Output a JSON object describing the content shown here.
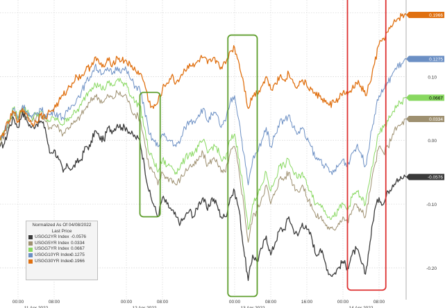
{
  "chart_data": {
    "type": "line",
    "title": "",
    "xlabel": "",
    "ylabel": "",
    "ylim": [
      -0.25,
      0.22
    ],
    "y_ticks": [
      0.1,
      0.0,
      -0.1,
      -0.2
    ],
    "y_tick_labels": [
      "0.10",
      "0.00",
      "-0.10",
      "-0.20"
    ],
    "x_ticks": [
      {
        "x": 4,
        "label": "00:00"
      },
      {
        "x": 12,
        "label": "08:00"
      },
      {
        "x": 28,
        "label": "00:00"
      },
      {
        "x": 36,
        "label": "08:00"
      },
      {
        "x": 52,
        "label": "00:00"
      },
      {
        "x": 60,
        "label": "08:00"
      },
      {
        "x": 68,
        "label": "16:00"
      },
      {
        "x": 76,
        "label": "00:00"
      },
      {
        "x": 84,
        "label": "08:00"
      }
    ],
    "date_labels": [
      {
        "x": 8,
        "label": "11 Apr 2022"
      },
      {
        "x": 32,
        "label": "12 Apr 2022"
      },
      {
        "x": 56,
        "label": "13 Apr 2022"
      },
      {
        "x": 80,
        "label": "14 Apr 2022"
      }
    ],
    "xlim": [
      0,
      90
    ],
    "grid": true,
    "legend_position": "bottom-left",
    "legend": {
      "line1": "Normalized As Of 04/08/2022",
      "line2": "Last Price"
    },
    "highlight_boxes": [
      {
        "x0": 31.0,
        "x1": 35.5,
        "y0": 0.075,
        "y1": -0.12,
        "color": "#5e9e2c"
      },
      {
        "x0": 50.5,
        "x1": 57.0,
        "y0": 0.165,
        "y1": -0.245,
        "color": "#5e9e2c"
      },
      {
        "x0": 77.0,
        "x1": 85.5,
        "y0": 0.228,
        "y1": -0.235,
        "color": "#dd3030"
      }
    ],
    "series": [
      {
        "name": "USGG2YR Index",
        "label": "USGG2YR Index",
        "value_label": "-0.0576",
        "last": -0.0576,
        "color": "#3a3a3a",
        "values": [
          -0.01,
          -0.005,
          0.02,
          0.035,
          0.02,
          0.045,
          0.03,
          0.02,
          0.025,
          0.03,
          0.02,
          -0.02,
          -0.015,
          -0.03,
          -0.05,
          -0.04,
          -0.045,
          -0.035,
          -0.03,
          -0.01,
          -0.01,
          0.015,
          0.005,
          0.0,
          0.02,
          0.015,
          0.025,
          0.02,
          0.02,
          0.01,
          0.005,
          0.0,
          -0.04,
          -0.08,
          -0.1,
          -0.12,
          -0.09,
          -0.1,
          -0.11,
          -0.12,
          -0.13,
          -0.12,
          -0.11,
          -0.12,
          -0.1,
          -0.09,
          -0.11,
          -0.09,
          -0.1,
          -0.12,
          -0.12,
          -0.09,
          -0.08,
          -0.11,
          -0.17,
          -0.22,
          -0.18,
          -0.19,
          -0.17,
          -0.15,
          -0.18,
          -0.16,
          -0.14,
          -0.14,
          -0.12,
          -0.14,
          -0.15,
          -0.13,
          -0.14,
          -0.15,
          -0.18,
          -0.17,
          -0.19,
          -0.21,
          -0.21,
          -0.2,
          -0.19,
          -0.2,
          -0.18,
          -0.17,
          -0.19,
          -0.21,
          -0.16,
          -0.11,
          -0.09,
          -0.1,
          -0.08,
          -0.07,
          -0.06,
          -0.06,
          -0.0576
        ]
      },
      {
        "name": "USGG5YR Index",
        "label": "USGG5YR Index",
        "value_label": "0.0334",
        "last": 0.0334,
        "color": "#9e9070",
        "values": [
          -0.005,
          0.01,
          0.025,
          0.045,
          0.03,
          0.05,
          0.035,
          0.03,
          0.035,
          0.04,
          0.03,
          0.02,
          0.025,
          0.02,
          0.01,
          0.02,
          0.025,
          0.03,
          0.04,
          0.05,
          0.06,
          0.07,
          0.065,
          0.06,
          0.07,
          0.065,
          0.075,
          0.07,
          0.07,
          0.05,
          0.04,
          0.035,
          0.0,
          -0.04,
          -0.05,
          -0.07,
          -0.05,
          -0.06,
          -0.06,
          -0.07,
          -0.06,
          -0.05,
          -0.04,
          -0.04,
          -0.03,
          -0.02,
          -0.04,
          -0.03,
          -0.03,
          -0.05,
          -0.05,
          -0.02,
          -0.01,
          -0.05,
          -0.1,
          -0.16,
          -0.12,
          -0.11,
          -0.09,
          -0.07,
          -0.1,
          -0.08,
          -0.06,
          -0.06,
          -0.05,
          -0.07,
          -0.08,
          -0.07,
          -0.09,
          -0.1,
          -0.12,
          -0.12,
          -0.13,
          -0.14,
          -0.14,
          -0.13,
          -0.12,
          -0.13,
          -0.11,
          -0.1,
          -0.11,
          -0.12,
          -0.08,
          -0.04,
          -0.01,
          -0.02,
          -0.01,
          0.01,
          0.02,
          0.025,
          0.0334
        ]
      },
      {
        "name": "USGG7YR Index",
        "label": "USGG7YR Index",
        "value_label": "0.0667",
        "last": 0.0667,
        "color": "#88d860",
        "values": [
          0.0,
          0.015,
          0.03,
          0.05,
          0.035,
          0.055,
          0.045,
          0.035,
          0.04,
          0.045,
          0.035,
          0.03,
          0.035,
          0.03,
          0.025,
          0.035,
          0.04,
          0.045,
          0.055,
          0.07,
          0.08,
          0.09,
          0.085,
          0.08,
          0.09,
          0.085,
          0.095,
          0.09,
          0.09,
          0.07,
          0.06,
          0.055,
          0.02,
          -0.02,
          -0.03,
          -0.05,
          -0.03,
          -0.04,
          -0.04,
          -0.05,
          -0.04,
          -0.03,
          -0.02,
          -0.02,
          -0.01,
          0.0,
          -0.02,
          -0.01,
          -0.01,
          -0.03,
          -0.03,
          0.0,
          0.01,
          -0.03,
          -0.08,
          -0.14,
          -0.1,
          -0.09,
          -0.07,
          -0.05,
          -0.08,
          -0.06,
          -0.04,
          -0.04,
          -0.03,
          -0.05,
          -0.06,
          -0.05,
          -0.07,
          -0.08,
          -0.1,
          -0.1,
          -0.11,
          -0.12,
          -0.12,
          -0.11,
          -0.1,
          -0.11,
          -0.09,
          -0.08,
          -0.09,
          -0.1,
          -0.06,
          -0.02,
          0.01,
          0.02,
          0.03,
          0.045,
          0.055,
          0.06,
          0.0667
        ]
      },
      {
        "name": "USGG10YR Index",
        "label": "USGG10YR Index",
        "value_label": "0.1275",
        "last": 0.1275,
        "color": "#6b8fc4",
        "values": [
          0.0,
          0.015,
          0.03,
          0.05,
          0.035,
          0.055,
          0.045,
          0.035,
          0.04,
          0.05,
          0.04,
          0.04,
          0.045,
          0.04,
          0.035,
          0.045,
          0.055,
          0.065,
          0.075,
          0.09,
          0.1,
          0.115,
          0.11,
          0.105,
          0.11,
          0.105,
          0.115,
          0.11,
          0.11,
          0.095,
          0.085,
          0.08,
          0.05,
          0.01,
          0.0,
          -0.01,
          0.01,
          0.0,
          0.0,
          -0.01,
          0.0,
          0.02,
          0.03,
          0.03,
          0.04,
          0.05,
          0.03,
          0.04,
          0.04,
          0.02,
          0.03,
          0.06,
          0.07,
          0.03,
          -0.02,
          -0.07,
          -0.03,
          -0.02,
          0.0,
          0.02,
          -0.01,
          0.01,
          0.03,
          0.03,
          0.04,
          0.02,
          0.01,
          0.02,
          0.0,
          -0.01,
          -0.03,
          -0.03,
          -0.04,
          -0.05,
          -0.05,
          -0.04,
          -0.03,
          -0.04,
          -0.02,
          -0.01,
          -0.02,
          -0.04,
          0.0,
          0.04,
          0.07,
          0.08,
          0.09,
          0.105,
          0.115,
          0.12,
          0.1275
        ]
      },
      {
        "name": "USGG30YR Index",
        "label": "USGG30YR Index",
        "value_label": "0.1966",
        "last": 0.1966,
        "color": "#e07010",
        "values": [
          0.0,
          0.015,
          0.03,
          0.045,
          0.03,
          0.05,
          0.04,
          0.025,
          0.03,
          0.04,
          0.035,
          0.045,
          0.05,
          0.06,
          0.07,
          0.08,
          0.09,
          0.1,
          0.1,
          0.11,
          0.115,
          0.13,
          0.12,
          0.115,
          0.125,
          0.12,
          0.13,
          0.125,
          0.125,
          0.115,
          0.11,
          0.105,
          0.09,
          0.06,
          0.05,
          0.06,
          0.08,
          0.09,
          0.1,
          0.09,
          0.1,
          0.11,
          0.12,
          0.115,
          0.125,
          0.13,
          0.12,
          0.125,
          0.125,
          0.115,
          0.12,
          0.14,
          0.145,
          0.12,
          0.09,
          0.05,
          0.07,
          0.075,
          0.085,
          0.1,
          0.08,
          0.09,
          0.1,
          0.095,
          0.105,
          0.09,
          0.085,
          0.095,
          0.085,
          0.08,
          0.07,
          0.07,
          0.06,
          0.055,
          0.06,
          0.065,
          0.075,
          0.07,
          0.08,
          0.09,
          0.085,
          0.07,
          0.09,
          0.12,
          0.15,
          0.16,
          0.17,
          0.18,
          0.19,
          0.195,
          0.1966
        ]
      }
    ]
  }
}
